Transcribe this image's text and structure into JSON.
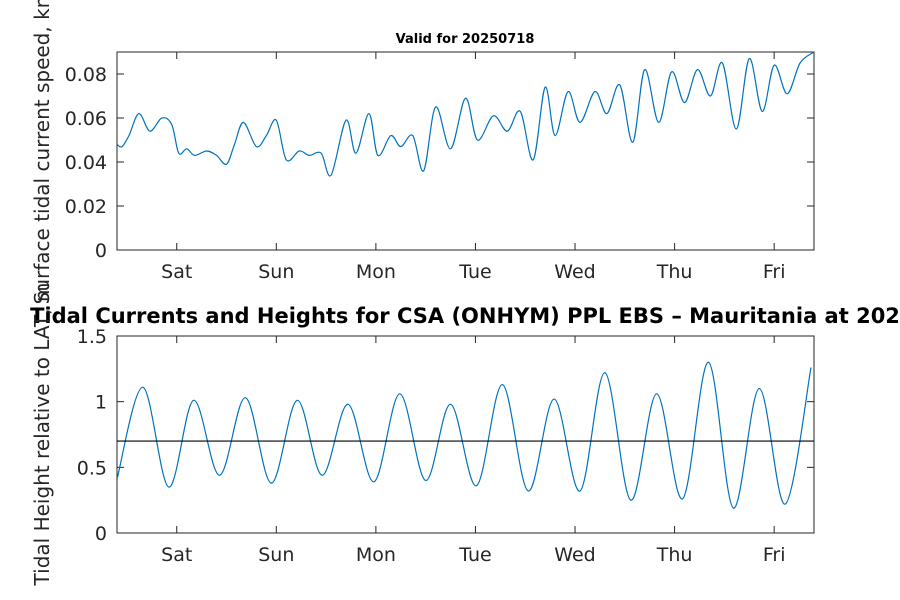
{
  "chart_data": [
    {
      "type": "line",
      "title": "Valid for 20250718",
      "ylabel": "Surface tidal current speed, kn",
      "ylim": [
        0,
        0.09
      ],
      "yticks": [
        0,
        0.02,
        0.04,
        0.06,
        0.08
      ],
      "ytick_labels": [
        "0",
        "0.02",
        "0.04",
        "0.06",
        "0.08"
      ],
      "xlim": [
        0,
        7
      ],
      "xticks": [
        0.6,
        1.6,
        2.6,
        3.6,
        4.6,
        5.6,
        6.6
      ],
      "xtick_labels": [
        "Sat",
        "Sun",
        "Mon",
        "Tue",
        "Wed",
        "Thu",
        "Fri"
      ],
      "series": [
        {
          "color": "#0072BD",
          "x": [
            0,
            0.05,
            0.12,
            0.22,
            0.33,
            0.45,
            0.55,
            0.62,
            0.7,
            0.78,
            0.9,
            1.0,
            1.1,
            1.18,
            1.27,
            1.4,
            1.5,
            1.6,
            1.7,
            1.83,
            1.93,
            2.05,
            2.15,
            2.3,
            2.4,
            2.53,
            2.62,
            2.75,
            2.85,
            2.97,
            3.08,
            3.2,
            3.35,
            3.5,
            3.62,
            3.78,
            3.92,
            4.05,
            4.18,
            4.3,
            4.4,
            4.53,
            4.65,
            4.8,
            4.92,
            5.05,
            5.18,
            5.3,
            5.44,
            5.57,
            5.7,
            5.83,
            5.96,
            6.08,
            6.22,
            6.35,
            6.48,
            6.6,
            6.73,
            6.86,
            7.0
          ],
          "y": [
            0.048,
            0.047,
            0.052,
            0.062,
            0.054,
            0.06,
            0.057,
            0.044,
            0.046,
            0.043,
            0.045,
            0.043,
            0.039,
            0.048,
            0.058,
            0.047,
            0.052,
            0.059,
            0.041,
            0.045,
            0.043,
            0.044,
            0.034,
            0.059,
            0.044,
            0.062,
            0.043,
            0.052,
            0.047,
            0.052,
            0.036,
            0.065,
            0.046,
            0.069,
            0.05,
            0.061,
            0.054,
            0.063,
            0.041,
            0.074,
            0.052,
            0.072,
            0.058,
            0.072,
            0.062,
            0.075,
            0.049,
            0.082,
            0.058,
            0.081,
            0.067,
            0.082,
            0.07,
            0.085,
            0.055,
            0.087,
            0.063,
            0.084,
            0.071,
            0.085,
            0.09
          ]
        }
      ]
    },
    {
      "type": "line",
      "title": "Tidal Currents and Heights for CSA (ONHYM) PPL EBS  – Mauritania at 202",
      "ylabel": "Tidal Height relative to LAT, m",
      "ylim": [
        0,
        1.5
      ],
      "yticks": [
        0,
        0.5,
        1,
        1.5
      ],
      "ytick_labels": [
        "0",
        "0.5",
        "1",
        "1.5"
      ],
      "xlim": [
        0,
        7
      ],
      "xticks": [
        0.6,
        1.6,
        2.6,
        3.6,
        4.6,
        5.6,
        6.6
      ],
      "xtick_labels": [
        "Sat",
        "Sun",
        "Mon",
        "Tue",
        "Wed",
        "Thu",
        "Fri"
      ],
      "reference_line": 0.7,
      "series": [
        {
          "color": "#0072BD",
          "x": [
            0,
            0.26,
            0.52,
            0.77,
            1.03,
            1.29,
            1.55,
            1.81,
            2.06,
            2.32,
            2.58,
            2.84,
            3.1,
            3.35,
            3.61,
            3.87,
            4.13,
            4.39,
            4.65,
            4.9,
            5.16,
            5.42,
            5.68,
            5.94,
            6.19,
            6.45,
            6.71,
            6.97
          ],
          "y": [
            0.41,
            1.11,
            0.35,
            1.01,
            0.44,
            1.03,
            0.38,
            1.01,
            0.44,
            0.98,
            0.39,
            1.06,
            0.4,
            0.98,
            0.36,
            1.13,
            0.32,
            1.02,
            0.32,
            1.22,
            0.25,
            1.06,
            0.26,
            1.3,
            0.19,
            1.1,
            0.22,
            1.26
          ]
        }
      ]
    }
  ]
}
